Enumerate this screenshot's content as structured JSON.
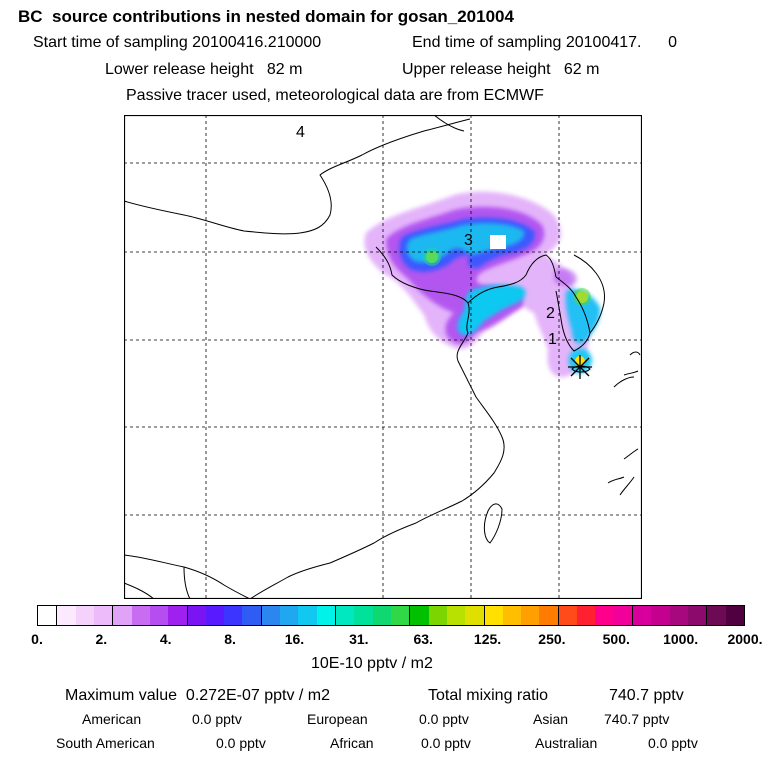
{
  "header": {
    "title": "BC  source contributions in nested domain for gosan_201004",
    "start_label": "Start time of sampling 20100416.210000",
    "end_label": "End time of sampling 20100417.      0",
    "lower_release": "Lower release height   82 m",
    "upper_release": "Upper release height   62 m",
    "tracer_note": "Passive tracer used, meteorological data are from ECMWF"
  },
  "map": {
    "point_labels": [
      "4",
      "3",
      "2",
      "1"
    ],
    "frame_color": "#000000",
    "grid_style": "dashed",
    "receptor_marker": "asterisk-star-icon"
  },
  "colorbar": {
    "colors": [
      "#ffffff",
      "#fbe9fd",
      "#f4d2fb",
      "#edbbf9",
      "#e0a3f7",
      "#c86cf2",
      "#b54df0",
      "#a020f0",
      "#7b14f2",
      "#5a1aff",
      "#3c34ff",
      "#2f5cf2",
      "#2c86f0",
      "#1fa7f0",
      "#10c8f0",
      "#00f2e8",
      "#00e8c0",
      "#00e29a",
      "#10d870",
      "#30d848",
      "#00c000",
      "#7cd400",
      "#b8e000",
      "#e0e000",
      "#ffe000",
      "#ffbe00",
      "#ff9f00",
      "#ff7c00",
      "#ff4a1a",
      "#ff2030",
      "#ff008c",
      "#f2009a",
      "#d8009c",
      "#c4008e",
      "#a8087e",
      "#8c0a6c",
      "#6c0a54",
      "#500040"
    ],
    "major_every": 4,
    "tick_labels": [
      "0.",
      "2.",
      "4.",
      "8.",
      "16.",
      "31.",
      "63.",
      "125.",
      "250.",
      "500.",
      "1000.",
      "2000."
    ],
    "unit_label": "10E-10 pptv / m2"
  },
  "stats": {
    "max_value": "Maximum value  0.272E-07 pptv / m2",
    "total_mixing": "Total mixing ratio",
    "total_value": "740.7 pptv",
    "regions": [
      {
        "name": "American",
        "value": "0.0 pptv"
      },
      {
        "name": "European",
        "value": "0.0 pptv"
      },
      {
        "name": "Asian",
        "value": "740.7 pptv"
      },
      {
        "name": "South American",
        "value": "0.0 pptv"
      },
      {
        "name": "African",
        "value": "0.0 pptv"
      },
      {
        "name": "Australian",
        "value": "0.0 pptv"
      }
    ]
  }
}
